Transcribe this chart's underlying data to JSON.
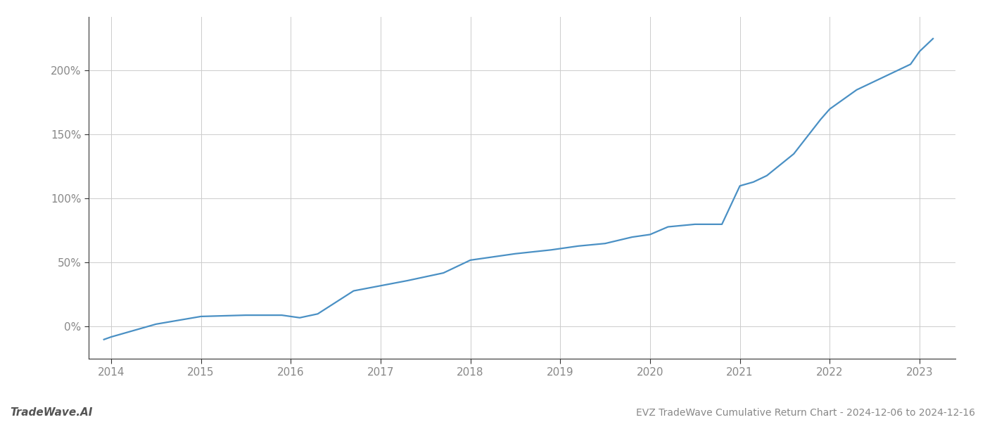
{
  "x_years": [
    2013.92,
    2014.0,
    2014.5,
    2015.0,
    2015.5,
    2015.9,
    2016.0,
    2016.1,
    2016.3,
    2016.7,
    2017.0,
    2017.3,
    2017.7,
    2018.0,
    2018.2,
    2018.5,
    2018.9,
    2019.2,
    2019.5,
    2019.8,
    2020.0,
    2020.2,
    2020.5,
    2020.8,
    2021.0,
    2021.15,
    2021.3,
    2021.6,
    2021.9,
    2022.0,
    2022.3,
    2022.6,
    2022.9,
    2023.0,
    2023.15
  ],
  "y_values": [
    -10,
    -8,
    2,
    8,
    9,
    9,
    8,
    7,
    10,
    28,
    32,
    36,
    42,
    52,
    54,
    57,
    60,
    63,
    65,
    70,
    72,
    78,
    80,
    80,
    110,
    113,
    118,
    135,
    162,
    170,
    185,
    195,
    205,
    215,
    225
  ],
  "line_color": "#4a90c4",
  "title": "EVZ TradeWave Cumulative Return Chart - 2024-12-06 to 2024-12-16",
  "watermark": "TradeWave.AI",
  "bg_color": "#ffffff",
  "grid_color": "#cccccc",
  "axis_color": "#333333",
  "tick_color": "#888888",
  "xlim": [
    2013.75,
    2023.4
  ],
  "ylim": [
    -25,
    242
  ],
  "yticks": [
    0,
    50,
    100,
    150,
    200
  ],
  "xticks": [
    2014,
    2015,
    2016,
    2017,
    2018,
    2019,
    2020,
    2021,
    2022,
    2023
  ],
  "linewidth": 1.6,
  "figsize": [
    14.0,
    6.0
  ],
  "dpi": 100
}
